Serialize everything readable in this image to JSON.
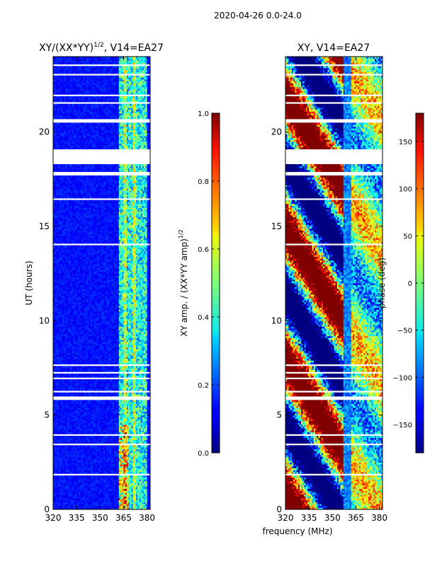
{
  "figure": {
    "suptitle": "2020-04-26 0.0-24.0",
    "xlabel": "frequency (MHz)"
  },
  "chart_data": [
    {
      "type": "heatmap",
      "title_main": "XY/(XX*YY)",
      "title_sup": "1/2",
      "title_rest": ", V14=EA27",
      "ylabel": "UT (hours)",
      "x_range": [
        320,
        382
      ],
      "x_ticks": [
        320,
        335,
        350,
        365,
        380
      ],
      "y_range": [
        0,
        24
      ],
      "y_ticks": [
        0,
        5,
        10,
        15,
        20
      ],
      "colorbar": {
        "label_main": "XY amp. / (XX*YY amp)",
        "label_sup": "1/2",
        "range": [
          0.0,
          1.0
        ],
        "ticks": [
          "0.0",
          "0.2",
          "0.4",
          "0.6",
          "0.8",
          "1.0"
        ]
      },
      "data_gaps_hours": [
        [
          18.3,
          19.1
        ]
      ]
    },
    {
      "type": "heatmap",
      "title": "XY, V14=EA27",
      "ylabel": "",
      "x_range": [
        320,
        382
      ],
      "x_ticks": [
        320,
        335,
        350,
        365,
        380
      ],
      "y_range": [
        0,
        24
      ],
      "y_ticks": [
        0,
        5,
        10,
        15,
        20
      ],
      "colorbar": {
        "label": "phase (deg)",
        "range": [
          -180,
          180
        ],
        "ticks": [
          "−150",
          "−100",
          "−50",
          "0",
          "50",
          "100",
          "150"
        ]
      },
      "data_gaps_hours": [
        [
          18.3,
          19.1
        ]
      ]
    }
  ]
}
